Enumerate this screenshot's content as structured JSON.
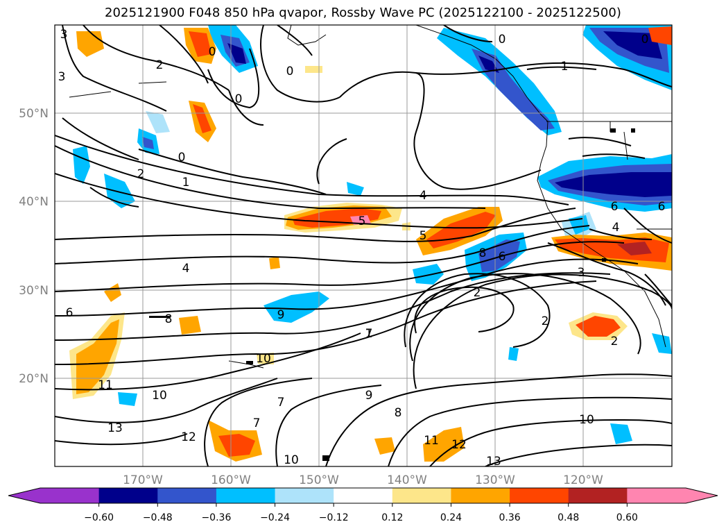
{
  "title": "2025121900 F048 850 hPa qvapor, Rossby Wave PC (2025122100 - 2025122500)",
  "map": {
    "lat_labels": [
      "50°N",
      "40°N",
      "30°N",
      "20°N"
    ],
    "lon_labels": [
      "170°W",
      "160°W",
      "150°W",
      "140°W",
      "130°W",
      "120°W"
    ],
    "contour_labels": [
      "0",
      "0",
      "0",
      "0",
      "0",
      "0",
      "1",
      "1",
      "1",
      "2",
      "2",
      "2",
      "2",
      "2",
      "3",
      "3",
      "3",
      "4",
      "4",
      "4",
      "5",
      "5",
      "6",
      "6",
      "6",
      "6",
      "7",
      "7",
      "7",
      "8",
      "8",
      "8",
      "9",
      "9",
      "10",
      "10",
      "10",
      "10",
      "11",
      "11",
      "12",
      "12",
      "13",
      "13"
    ]
  },
  "colorbar": {
    "ticks": [
      "−0.60",
      "−0.48",
      "−0.36",
      "−0.24",
      "−0.12",
      "0.12",
      "0.24",
      "0.36",
      "0.48",
      "0.60"
    ],
    "colors": {
      "low_extend": "#9932cc",
      "n060": "#00008b",
      "n048": "#3355cc",
      "n036": "#00bfff",
      "n024": "#aee3fa",
      "neutral": "#ffffff",
      "p012": "#fde68a",
      "p024": "#ffa500",
      "p036": "#ff4500",
      "p048": "#b22222",
      "high_extend": "#ff85b0"
    }
  }
}
